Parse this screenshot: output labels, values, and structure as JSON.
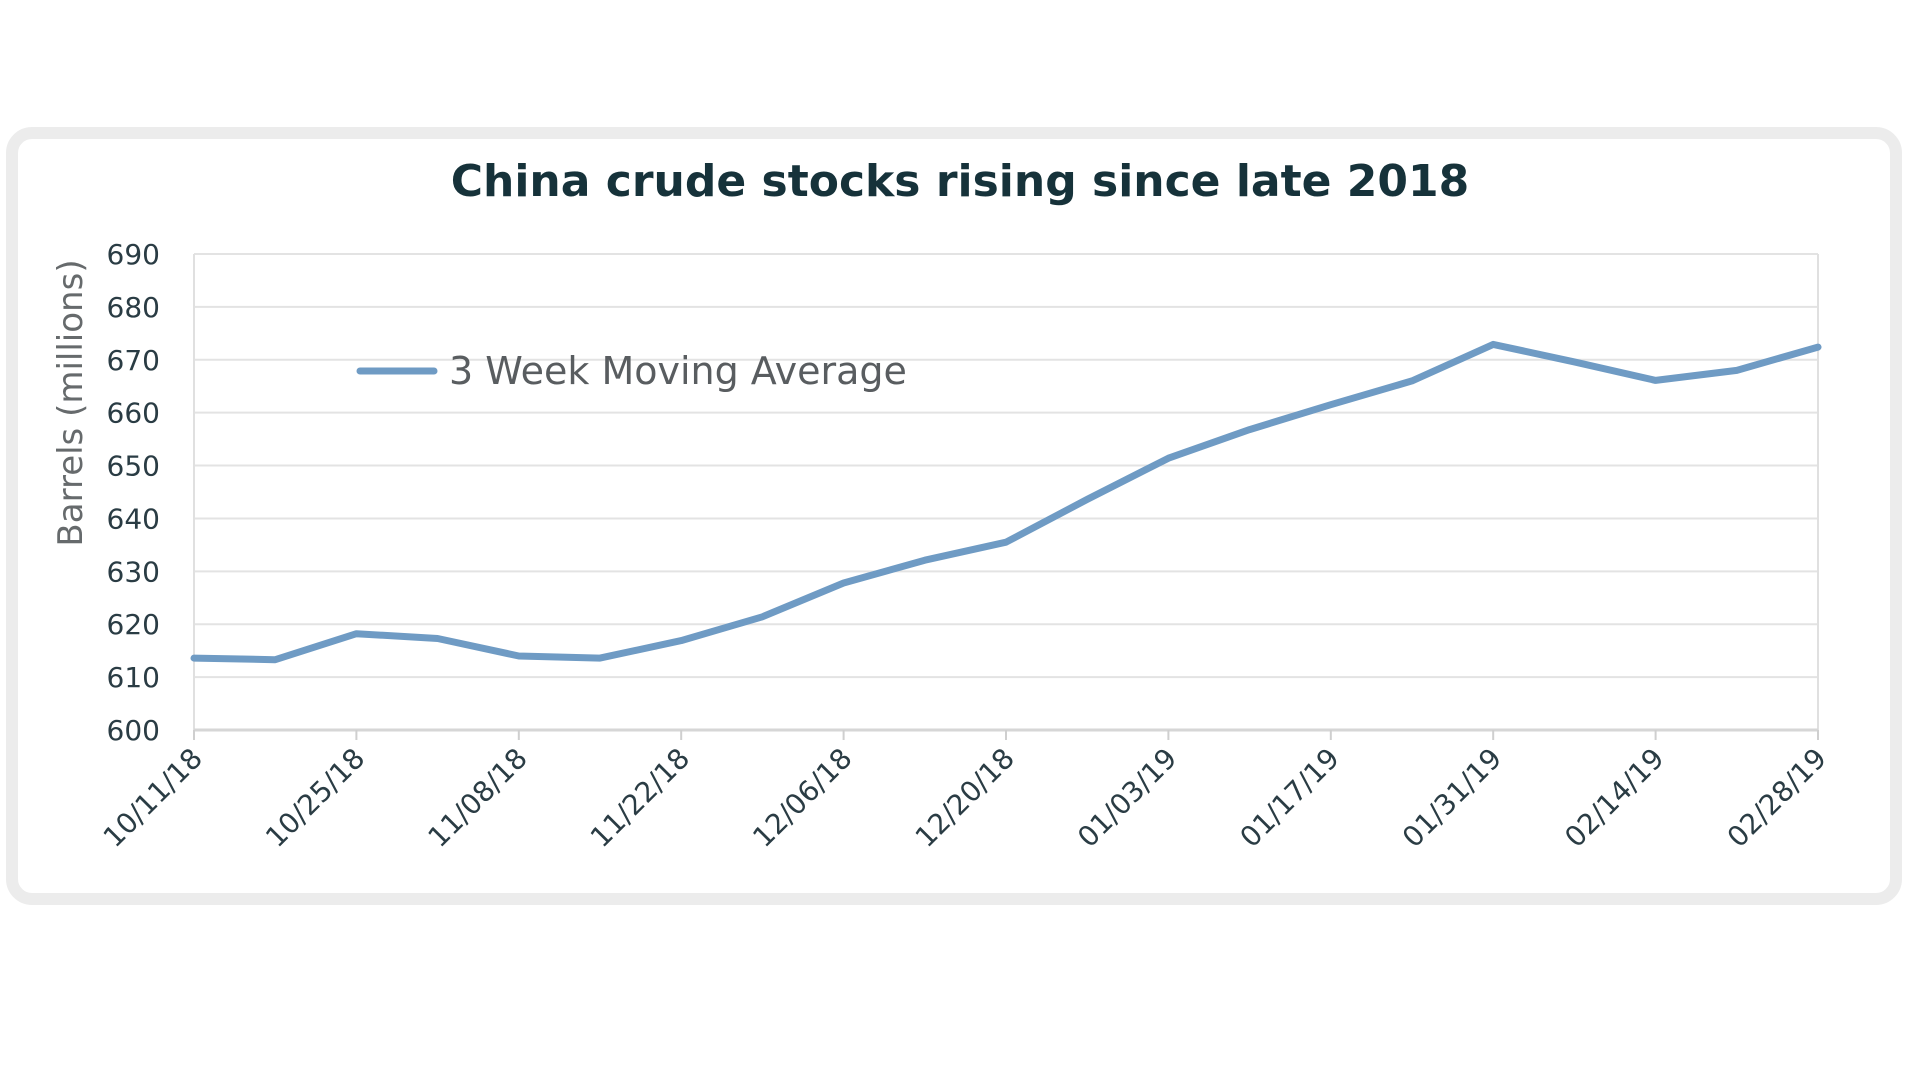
{
  "chart_data": {
    "type": "line",
    "title": "China crude stocks rising since late 2018",
    "ylabel": "Barrels (millions)",
    "xlabel": "",
    "ylim": [
      600,
      690
    ],
    "yticks": [
      600,
      610,
      620,
      630,
      640,
      650,
      660,
      670,
      680,
      690
    ],
    "grid": true,
    "legend_position": "top-left",
    "x_tick_labels": [
      "10/11/18",
      "10/25/18",
      "11/08/18",
      "11/22/18",
      "12/06/18",
      "12/20/18",
      "01/03/19",
      "01/17/19",
      "01/31/19",
      "02/14/19",
      "02/28/19"
    ],
    "x": [
      "10/11/18",
      "10/18/18",
      "10/25/18",
      "11/01/18",
      "11/08/18",
      "11/15/18",
      "11/22/18",
      "11/29/18",
      "12/06/18",
      "12/13/18",
      "12/20/18",
      "12/27/18",
      "01/03/19",
      "01/10/19",
      "01/17/19",
      "01/24/19",
      "01/31/19",
      "02/07/19",
      "02/14/19",
      "02/21/19",
      "02/28/19"
    ],
    "series": [
      {
        "name": "3 Week Moving Average",
        "color": "#6f9bc4",
        "values": [
          613.6,
          613.3,
          618.2,
          617.3,
          614.0,
          613.6,
          616.9,
          621.4,
          627.8,
          632.1,
          635.5,
          643.6,
          651.4,
          656.8,
          661.5,
          666.0,
          672.9,
          669.6,
          666.1,
          668.0,
          672.4
        ]
      }
    ]
  }
}
